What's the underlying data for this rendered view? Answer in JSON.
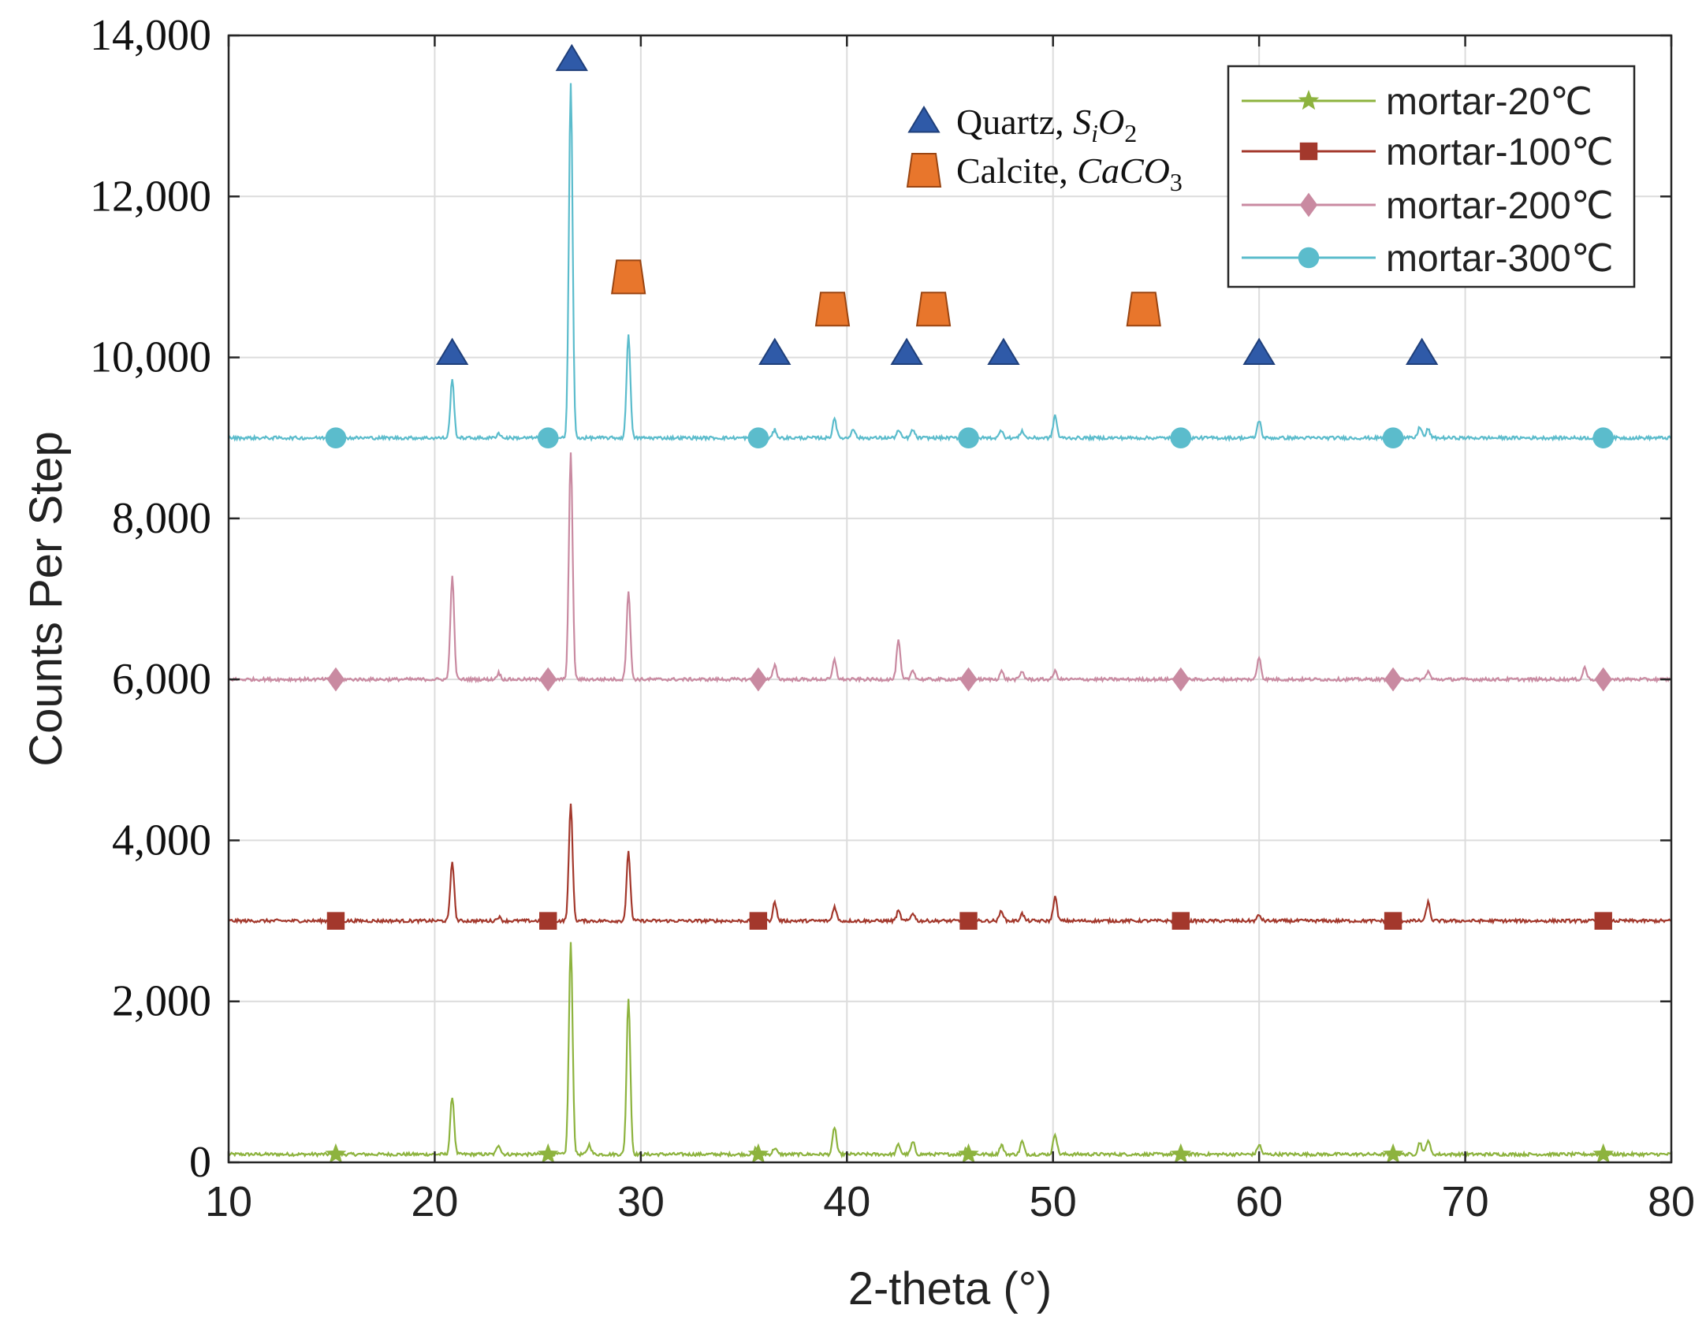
{
  "chart_data": {
    "type": "line",
    "title": "",
    "xlabel": "2-theta (°)",
    "ylabel": "Counts Per Step",
    "xlim": [
      10,
      80
    ],
    "ylim": [
      0,
      14000
    ],
    "grid": true,
    "xticks": [
      10,
      20,
      30,
      40,
      50,
      60,
      70,
      80
    ],
    "xtick_labels": [
      "10",
      "20",
      "30",
      "40",
      "50",
      "60",
      "70",
      "80"
    ],
    "yticks": [
      0,
      2000,
      4000,
      6000,
      8000,
      10000,
      12000,
      14000
    ],
    "ytick_labels": [
      "0",
      "2,000",
      "4,000",
      "6,000",
      "8,000",
      "10,000",
      "12,000",
      "14,000"
    ],
    "legend_position": "top-right",
    "marker_x": [
      15.2,
      25.5,
      35.7,
      45.9,
      56.2,
      66.5,
      76.7
    ],
    "series": [
      {
        "name": "mortar-20℃",
        "color": "#8db33e",
        "marker": "star",
        "baseline": 100,
        "peaks": [
          [
            20.85,
            720
          ],
          [
            23.1,
            120
          ],
          [
            26.6,
            2620
          ],
          [
            27.5,
            120
          ],
          [
            29.4,
            1950
          ],
          [
            35.6,
            80
          ],
          [
            36.5,
            80
          ],
          [
            39.4,
            340
          ],
          [
            42.5,
            120
          ],
          [
            43.2,
            150
          ],
          [
            45.8,
            80
          ],
          [
            47.5,
            120
          ],
          [
            48.5,
            160
          ],
          [
            50.1,
            260
          ],
          [
            60.0,
            120
          ],
          [
            67.8,
            150
          ],
          [
            68.2,
            180
          ]
        ]
      },
      {
        "name": "mortar-100℃",
        "color": "#a3382c",
        "marker": "square",
        "baseline": 3000,
        "peaks": [
          [
            20.85,
            740
          ],
          [
            23.1,
            50
          ],
          [
            26.6,
            1450
          ],
          [
            29.4,
            850
          ],
          [
            36.5,
            230
          ],
          [
            39.4,
            180
          ],
          [
            42.5,
            120
          ],
          [
            43.2,
            100
          ],
          [
            47.5,
            130
          ],
          [
            48.5,
            90
          ],
          [
            50.1,
            300
          ],
          [
            60.0,
            70
          ],
          [
            68.2,
            230
          ]
        ]
      },
      {
        "name": "mortar-200℃",
        "color": "#c98aa1",
        "marker": "diamond",
        "baseline": 6000,
        "peaks": [
          [
            20.85,
            1270
          ],
          [
            23.1,
            80
          ],
          [
            26.6,
            2800
          ],
          [
            29.4,
            1100
          ],
          [
            36.5,
            170
          ],
          [
            39.4,
            240
          ],
          [
            42.5,
            480
          ],
          [
            43.2,
            120
          ],
          [
            47.5,
            100
          ],
          [
            48.5,
            100
          ],
          [
            50.1,
            100
          ],
          [
            60.0,
            280
          ],
          [
            68.2,
            100
          ],
          [
            75.8,
            150
          ]
        ]
      },
      {
        "name": "mortar-300℃",
        "color": "#5bbccc",
        "marker": "circle",
        "baseline": 9000,
        "peaks": [
          [
            20.85,
            720
          ],
          [
            23.1,
            60
          ],
          [
            26.6,
            4400
          ],
          [
            29.4,
            1300
          ],
          [
            36.5,
            100
          ],
          [
            39.4,
            250
          ],
          [
            40.3,
            120
          ],
          [
            42.5,
            90
          ],
          [
            43.2,
            100
          ],
          [
            47.5,
            100
          ],
          [
            48.5,
            90
          ],
          [
            50.1,
            280
          ],
          [
            60.0,
            220
          ],
          [
            67.8,
            140
          ],
          [
            68.2,
            110
          ]
        ]
      }
    ],
    "phase_markers": [
      {
        "label": "Quartz, ",
        "formula": "SiO2",
        "formula_main": "S",
        "formula_sub1": "i",
        "formula_main2": "O",
        "formula_sub2": "2",
        "shape": "triangle",
        "color": "#2f5aa8",
        "positions": [
          [
            20.85,
            10050
          ],
          [
            26.65,
            13700
          ],
          [
            36.5,
            10050
          ],
          [
            42.9,
            10050
          ],
          [
            47.6,
            10050
          ],
          [
            60.0,
            10050
          ],
          [
            67.9,
            10050
          ]
        ]
      },
      {
        "label": "Calcite, ",
        "formula": "CaCO3",
        "formula_main": "CaCO",
        "formula_sub": "3",
        "shape": "trapezoid",
        "color": "#e8762c",
        "positions": [
          [
            29.4,
            11000
          ],
          [
            39.3,
            10600
          ],
          [
            44.2,
            10600
          ],
          [
            54.4,
            10600
          ]
        ]
      }
    ]
  }
}
